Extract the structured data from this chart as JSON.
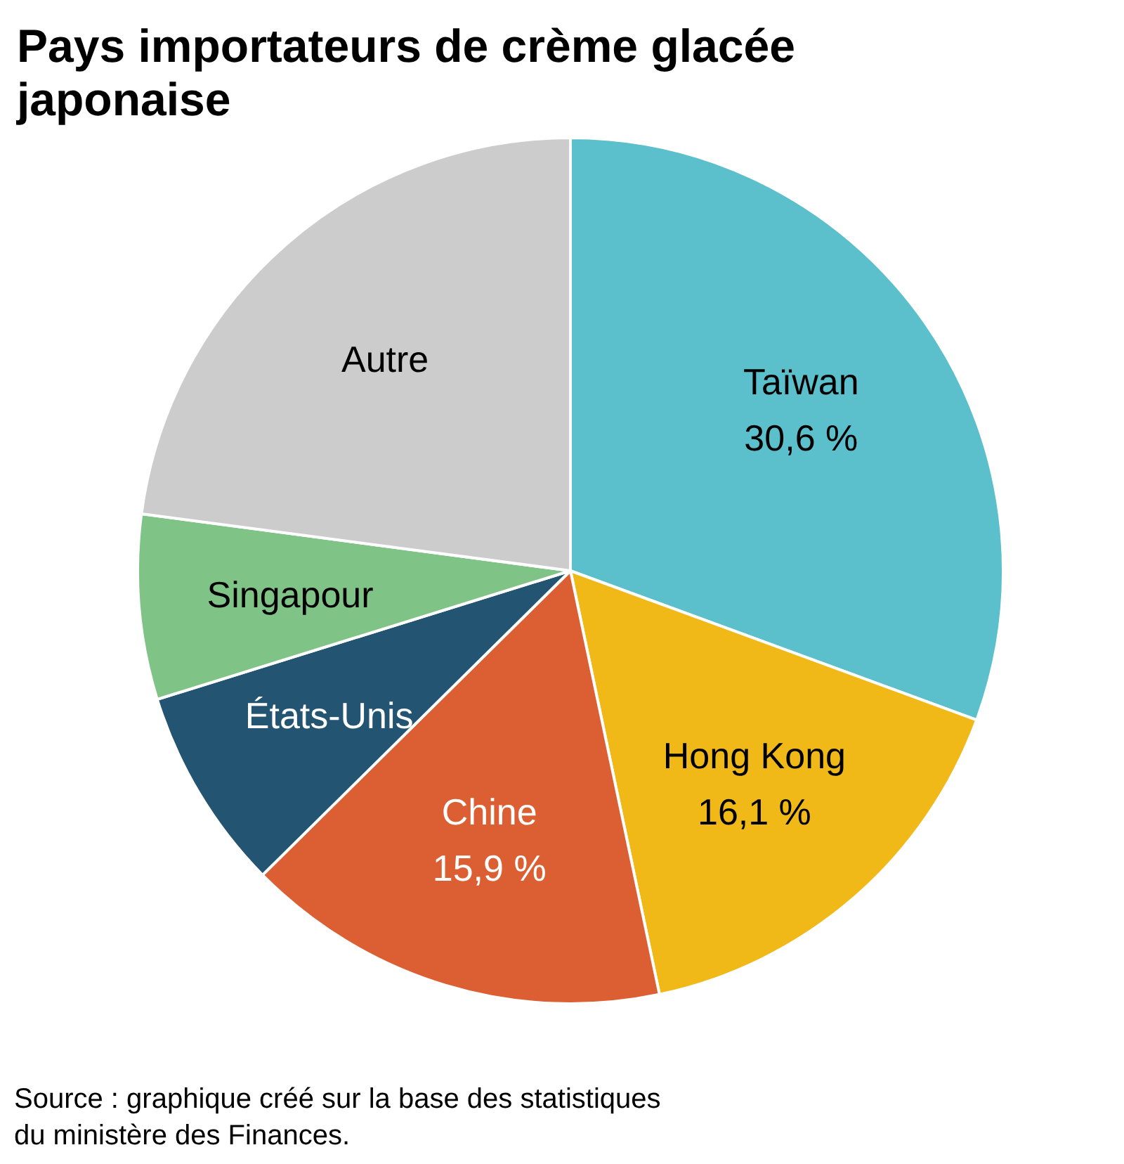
{
  "chart_data": {
    "type": "pie",
    "title": "Pays importateurs de crème glacée japonaise",
    "categories": [
      "Taïwan",
      "Hong Kong",
      "Chine",
      "États-Unis",
      "Singapour",
      "Autre"
    ],
    "values": [
      30.6,
      16.1,
      15.9,
      7.6,
      6.9,
      22.9
    ],
    "value_labels": [
      "30,6 %",
      "16,1 %",
      "15,9 %",
      null,
      null,
      null
    ],
    "colors": [
      "#5bc0cb",
      "#f0b917",
      "#dc5f33",
      "#235472",
      "#80c387",
      "#cccccc"
    ],
    "annotations": [
      "Source : graphique créé sur la base des statistiques du ministère des Finances."
    ]
  }
}
